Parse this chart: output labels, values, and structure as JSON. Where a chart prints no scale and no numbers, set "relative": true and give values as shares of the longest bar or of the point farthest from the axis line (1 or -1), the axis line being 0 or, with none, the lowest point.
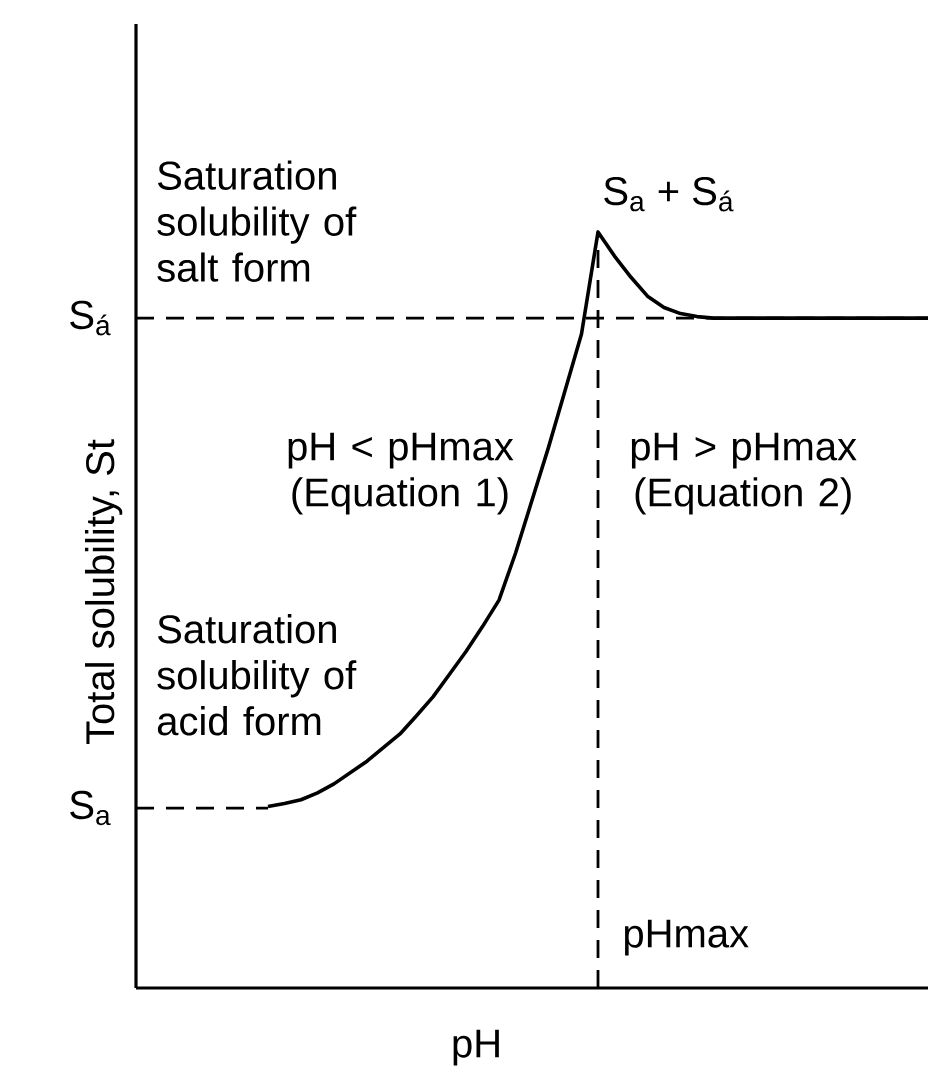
{
  "chart_data": {
    "type": "line",
    "relative": true,
    "xlabel": "pH",
    "ylabel": "Total solubility, St",
    "categories": [
      null,
      null,
      null,
      null,
      null,
      null,
      null,
      null,
      null,
      null,
      null,
      null,
      null,
      null,
      null,
      null,
      null,
      null,
      null,
      null,
      null,
      null,
      null,
      null,
      null,
      null,
      null,
      null,
      null,
      null,
      null,
      null,
      null,
      null,
      null,
      null,
      null,
      null,
      null,
      null,
      null,
      null,
      null,
      null,
      null,
      null,
      null,
      null,
      null
    ],
    "series": [
      {
        "color": "#000000",
        "line_style": "solid",
        "values": [
          null,
          null,
          null,
          null,
          null,
          null,
          null,
          null,
          0.24,
          0.244,
          0.249,
          0.258,
          0.27,
          0.285,
          0.3,
          0.318,
          0.336,
          0.36,
          0.385,
          0.415,
          0.445,
          0.478,
          0.513,
          0.575,
          0.645,
          0.715,
          0.79,
          0.865,
          1.0,
          0.968,
          0.94,
          0.915,
          0.9,
          0.892,
          0.888,
          0.886,
          0.886,
          0.886,
          0.886,
          0.886,
          0.886,
          0.886,
          0.886,
          0.886,
          0.886,
          0.886,
          0.886,
          0.886,
          0.886
        ]
      }
    ],
    "ref_lines": [
      {
        "axis": "y",
        "value": 0.238,
        "label": "S$_{a}$",
        "color": "#000000",
        "line_style": "dashed"
      },
      {
        "axis": "y",
        "value": 0.886,
        "label": "S$_{á}$",
        "color": "#000000",
        "line_style": "dashed"
      }
    ],
    "annotations": [
      "Saturation solubility of salt form",
      "S$_{a}$ + S$_{á}$",
      "pH < pHmax (Equation 1)",
      "pH > pHmax (Equation 2)",
      "Saturation solubility of acid form",
      "pHmax"
    ]
  }
}
